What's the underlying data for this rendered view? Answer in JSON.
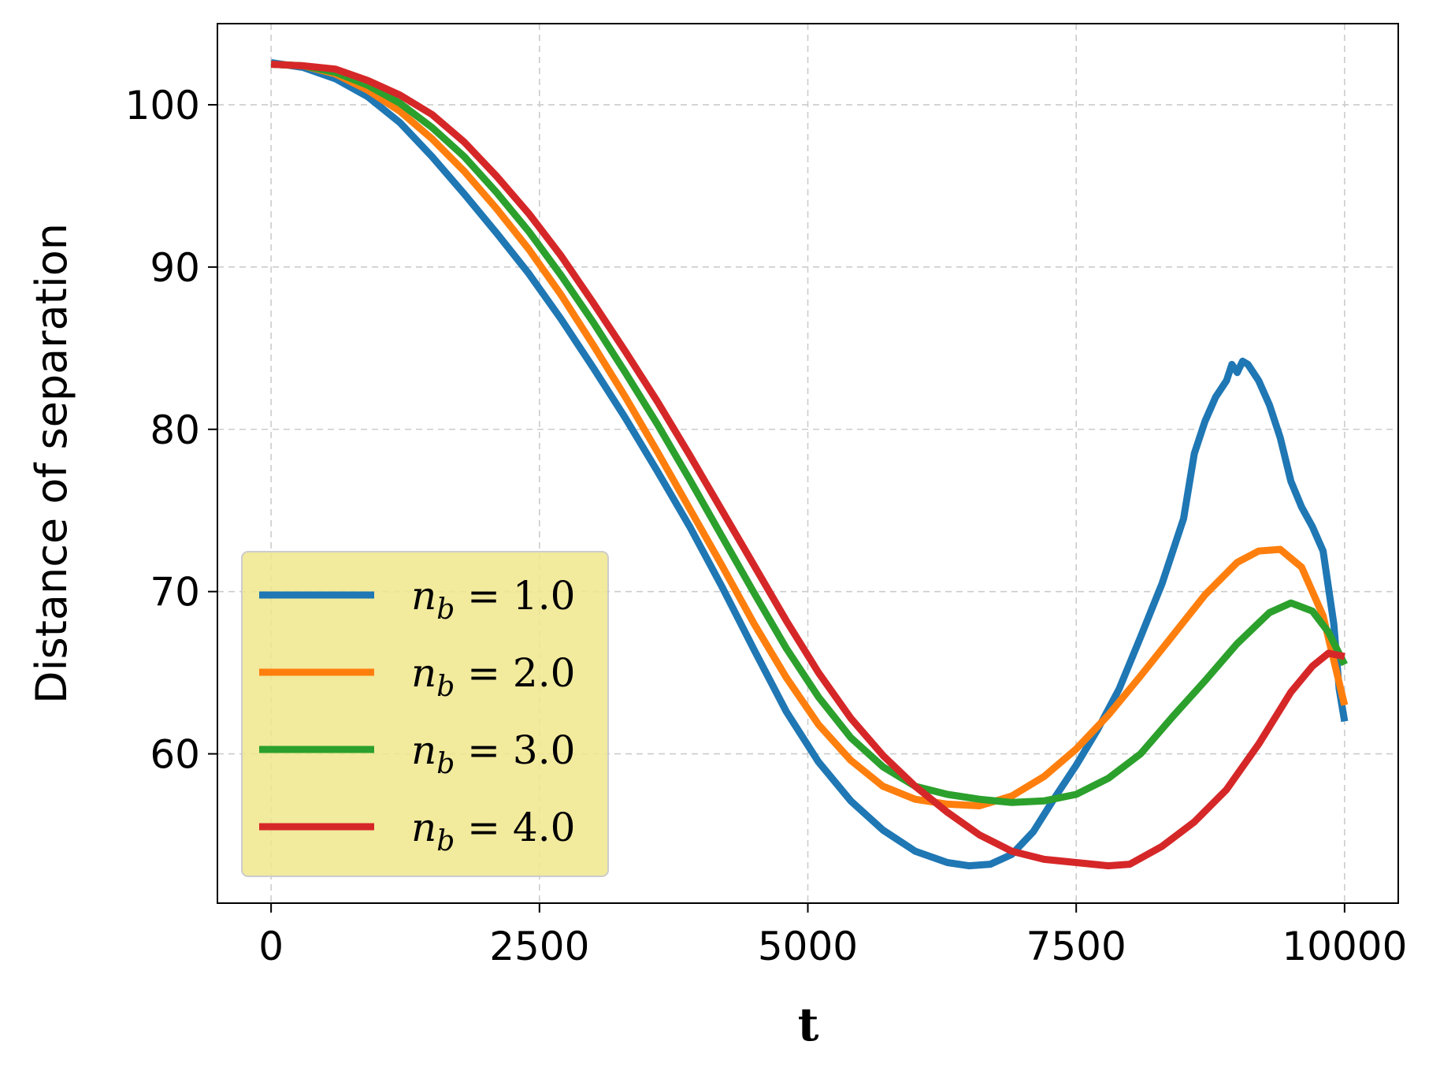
{
  "chart_data": {
    "type": "line",
    "title": "",
    "xlabel": "t",
    "ylabel": "Distance of separation",
    "xlim": [
      -500,
      10500
    ],
    "ylim": [
      50.8,
      105
    ],
    "xticks": [
      0,
      2500,
      5000,
      7500,
      10000
    ],
    "xtick_labels": [
      "0",
      "2500",
      "5000",
      "7500",
      "10000"
    ],
    "yticks": [
      60,
      70,
      80,
      90,
      100
    ],
    "ytick_labels": [
      "60",
      "70",
      "80",
      "90",
      "100"
    ],
    "grid": true,
    "legend_position": "lower-left",
    "series": [
      {
        "name": "n_b = 1.0",
        "label_text": "n",
        "label_sub": "b",
        "label_value": " = 1.0",
        "color": "#1f77b4",
        "x": [
          0,
          300,
          600,
          900,
          1200,
          1500,
          1800,
          2100,
          2400,
          2700,
          3000,
          3300,
          3600,
          3900,
          4200,
          4500,
          4800,
          5100,
          5400,
          5700,
          6000,
          6300,
          6500,
          6700,
          6900,
          7100,
          7300,
          7500,
          7700,
          7900,
          8100,
          8300,
          8500,
          8600,
          8700,
          8800,
          8900,
          8950,
          9000,
          9050,
          9100,
          9200,
          9300,
          9400,
          9500,
          9600,
          9700,
          9800,
          9900,
          9950,
          10000
        ],
        "y": [
          102.6,
          102.3,
          101.6,
          100.5,
          98.9,
          96.8,
          94.5,
          92.1,
          89.6,
          86.8,
          83.8,
          80.7,
          77.4,
          74.0,
          70.3,
          66.4,
          62.6,
          59.5,
          57.1,
          55.3,
          54.0,
          53.3,
          53.1,
          53.2,
          53.8,
          55.2,
          57.3,
          59.3,
          61.5,
          64.0,
          67.2,
          70.5,
          74.5,
          78.5,
          80.5,
          82.0,
          83.0,
          84.0,
          83.5,
          84.2,
          84.0,
          83.0,
          81.5,
          79.5,
          76.8,
          75.2,
          74.0,
          72.5,
          68.0,
          64.0,
          62.0
        ]
      },
      {
        "name": "n_b = 2.0",
        "label_text": "n",
        "label_sub": "b",
        "label_value": " = 2.0",
        "color": "#ff7f0e",
        "x": [
          0,
          300,
          600,
          900,
          1200,
          1500,
          1800,
          2100,
          2400,
          2700,
          3000,
          3300,
          3600,
          3900,
          4200,
          4500,
          4800,
          5100,
          5400,
          5700,
          6000,
          6300,
          6600,
          6900,
          7200,
          7500,
          7800,
          8100,
          8400,
          8700,
          9000,
          9200,
          9400,
          9600,
          9800,
          10000
        ],
        "y": [
          102.5,
          102.4,
          101.9,
          100.9,
          99.6,
          97.9,
          95.9,
          93.6,
          91.1,
          88.3,
          85.2,
          82.0,
          78.6,
          75.1,
          71.6,
          68.0,
          64.7,
          61.8,
          59.6,
          58.0,
          57.2,
          56.9,
          56.8,
          57.4,
          58.6,
          60.3,
          62.4,
          64.8,
          67.3,
          69.8,
          71.8,
          72.5,
          72.6,
          71.5,
          68.5,
          63.0
        ]
      },
      {
        "name": "n_b = 3.0",
        "label_text": "n",
        "label_sub": "b",
        "label_value": " = 3.0",
        "color": "#2ca02c",
        "x": [
          0,
          300,
          600,
          900,
          1200,
          1500,
          1800,
          2100,
          2400,
          2700,
          3000,
          3300,
          3600,
          3900,
          4200,
          4500,
          4800,
          5100,
          5400,
          5700,
          6000,
          6300,
          6600,
          6900,
          7200,
          7500,
          7800,
          8100,
          8400,
          8700,
          9000,
          9300,
          9500,
          9700,
          9850,
          10000
        ],
        "y": [
          102.5,
          102.4,
          102.0,
          101.2,
          100.1,
          98.6,
          96.8,
          94.6,
          92.2,
          89.5,
          86.6,
          83.5,
          80.3,
          76.9,
          73.4,
          69.9,
          66.5,
          63.5,
          61.0,
          59.2,
          58.0,
          57.5,
          57.2,
          57.0,
          57.1,
          57.5,
          58.5,
          60.0,
          62.3,
          64.5,
          66.8,
          68.7,
          69.3,
          68.8,
          67.5,
          65.5
        ]
      },
      {
        "name": "n_b = 4.0",
        "label_text": "n",
        "label_sub": "b",
        "label_value": " = 4.0",
        "color": "#d62728",
        "x": [
          0,
          300,
          600,
          900,
          1200,
          1500,
          1800,
          2100,
          2400,
          2700,
          3000,
          3300,
          3600,
          3900,
          4200,
          4500,
          4800,
          5100,
          5400,
          5700,
          6000,
          6300,
          6600,
          6900,
          7200,
          7500,
          7800,
          8000,
          8300,
          8600,
          8900,
          9200,
          9500,
          9700,
          9850,
          10000
        ],
        "y": [
          102.5,
          102.4,
          102.2,
          101.5,
          100.6,
          99.4,
          97.7,
          95.6,
          93.3,
          90.7,
          87.8,
          84.8,
          81.7,
          78.4,
          75.0,
          71.6,
          68.2,
          65.0,
          62.2,
          59.9,
          58.0,
          56.4,
          55.0,
          54.0,
          53.5,
          53.3,
          53.1,
          53.2,
          54.3,
          55.8,
          57.8,
          60.6,
          63.8,
          65.4,
          66.2,
          66.0
        ]
      }
    ]
  }
}
